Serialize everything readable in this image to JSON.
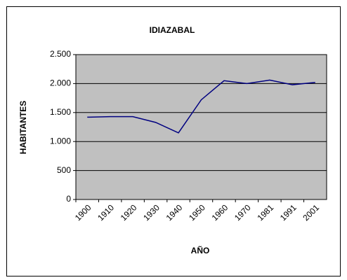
{
  "chart_data": {
    "type": "line",
    "title": "IDIAZABAL",
    "x_label": "AÑO",
    "y_label": "HABITANTES",
    "categories": [
      "1900",
      "1910",
      "1920",
      "1930",
      "1940",
      "1950",
      "1960",
      "1970",
      "1981",
      "1991",
      "2001"
    ],
    "values": [
      1420,
      1430,
      1430,
      1330,
      1150,
      1720,
      2050,
      2000,
      2060,
      1980,
      2020
    ],
    "color": "#000080",
    "plot_background": "#c0c0c0",
    "ylim": [
      0,
      2500
    ],
    "yticks": [
      0,
      500,
      {
        "value": 1000,
        "label": "1.000"
      },
      {
        "value": 1500,
        "label": "1.500"
      },
      {
        "value": 2000,
        "label": "2.000"
      },
      {
        "value": 2500,
        "label": "2.500"
      }
    ],
    "grid": true
  }
}
